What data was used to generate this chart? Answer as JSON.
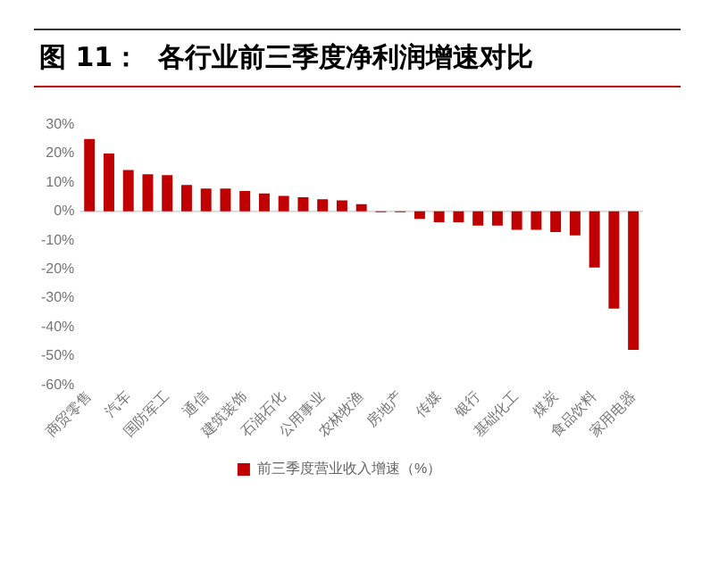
{
  "chart_data": {
    "type": "bar",
    "title": "图 11：  各行业前三季度净利润增速对比",
    "categories": [
      "商贸零售",
      null,
      "汽车",
      null,
      "国防军工",
      null,
      "通信",
      null,
      "建筑装饰",
      null,
      "石油石化",
      null,
      "公用事业",
      null,
      "农林牧渔",
      null,
      "房地产",
      null,
      "传媒",
      null,
      "银行",
      null,
      "基础化工",
      null,
      "煤炭",
      null,
      "食品饮料",
      null,
      "家用电器"
    ],
    "series": [
      {
        "name": "前三季度营业收入增速（%）",
        "color": "#c00000",
        "values": [
          25,
          20,
          14.3,
          12.8,
          12.5,
          9.1,
          7.9,
          7.9,
          7.0,
          6.2,
          5.3,
          4.9,
          4.2,
          3.8,
          2.5,
          -0.3,
          -0.3,
          -2.6,
          -3.8,
          -3.8,
          -4.9,
          -4.9,
          -6.4,
          -6.4,
          -7.2,
          -8.3,
          -19.4,
          -33.6,
          -47.9
        ]
      }
    ],
    "ylim": [
      -60,
      30
    ],
    "yticks": [
      {
        "value": -60,
        "label": "-60%"
      },
      {
        "value": -50,
        "label": "-50%"
      },
      {
        "value": -40,
        "label": "-40%"
      },
      {
        "value": -30,
        "label": "-30%"
      },
      {
        "value": -20,
        "label": "-20%"
      },
      {
        "value": -10,
        "label": "-10%"
      },
      {
        "value": 0,
        "label": "0%"
      },
      {
        "value": 10,
        "label": "10%"
      },
      {
        "value": 20,
        "label": "20%"
      },
      {
        "value": 30,
        "label": "30%"
      }
    ],
    "ref_lines": [
      {
        "axis": "y",
        "value": 0,
        "color": "#d9d9d9"
      }
    ],
    "grid": false,
    "legend": "bottom"
  }
}
